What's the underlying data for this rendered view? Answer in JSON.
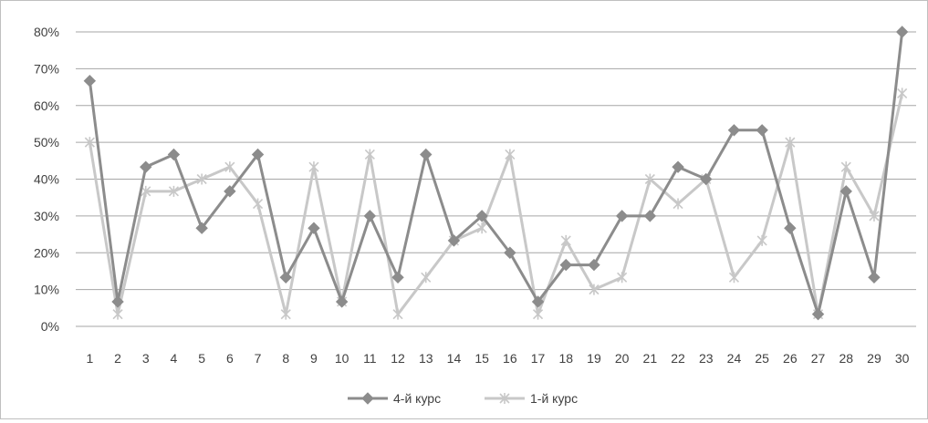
{
  "chart_data": {
    "type": "line",
    "title": "",
    "xlabel": "",
    "ylabel": "",
    "categories": [
      "1",
      "2",
      "3",
      "4",
      "5",
      "6",
      "7",
      "8",
      "9",
      "10",
      "11",
      "12",
      "13",
      "14",
      "15",
      "16",
      "17",
      "18",
      "19",
      "20",
      "21",
      "22",
      "23",
      "24",
      "25",
      "26",
      "27",
      "28",
      "29",
      "30"
    ],
    "y_ticks": [
      "0%",
      "10%",
      "20%",
      "30%",
      "40%",
      "50%",
      "60%",
      "70%",
      "80%"
    ],
    "ylim": [
      0,
      0.8
    ],
    "grid": true,
    "legend_position": "bottom",
    "series": [
      {
        "name": "4-й курс",
        "color": "#8c8c8c",
        "marker": "diamond",
        "values": [
          0.667,
          0.067,
          0.433,
          0.467,
          0.267,
          0.367,
          0.467,
          0.133,
          0.267,
          0.067,
          0.3,
          0.133,
          0.467,
          0.233,
          0.3,
          0.2,
          0.067,
          0.167,
          0.167,
          0.3,
          0.3,
          0.433,
          0.4,
          0.533,
          0.533,
          0.267,
          0.033,
          0.367,
          0.133,
          0.8
        ]
      },
      {
        "name": "1-й курс",
        "color": "#c8c8c8",
        "marker": "star",
        "values": [
          0.5,
          0.033,
          0.367,
          0.367,
          0.4,
          0.433,
          0.333,
          0.033,
          0.433,
          0.067,
          0.467,
          0.033,
          0.133,
          0.233,
          0.267,
          0.467,
          0.033,
          0.233,
          0.1,
          0.133,
          0.4,
          0.333,
          0.4,
          0.133,
          0.233,
          0.5,
          0.033,
          0.433,
          0.3,
          0.633
        ]
      }
    ]
  }
}
